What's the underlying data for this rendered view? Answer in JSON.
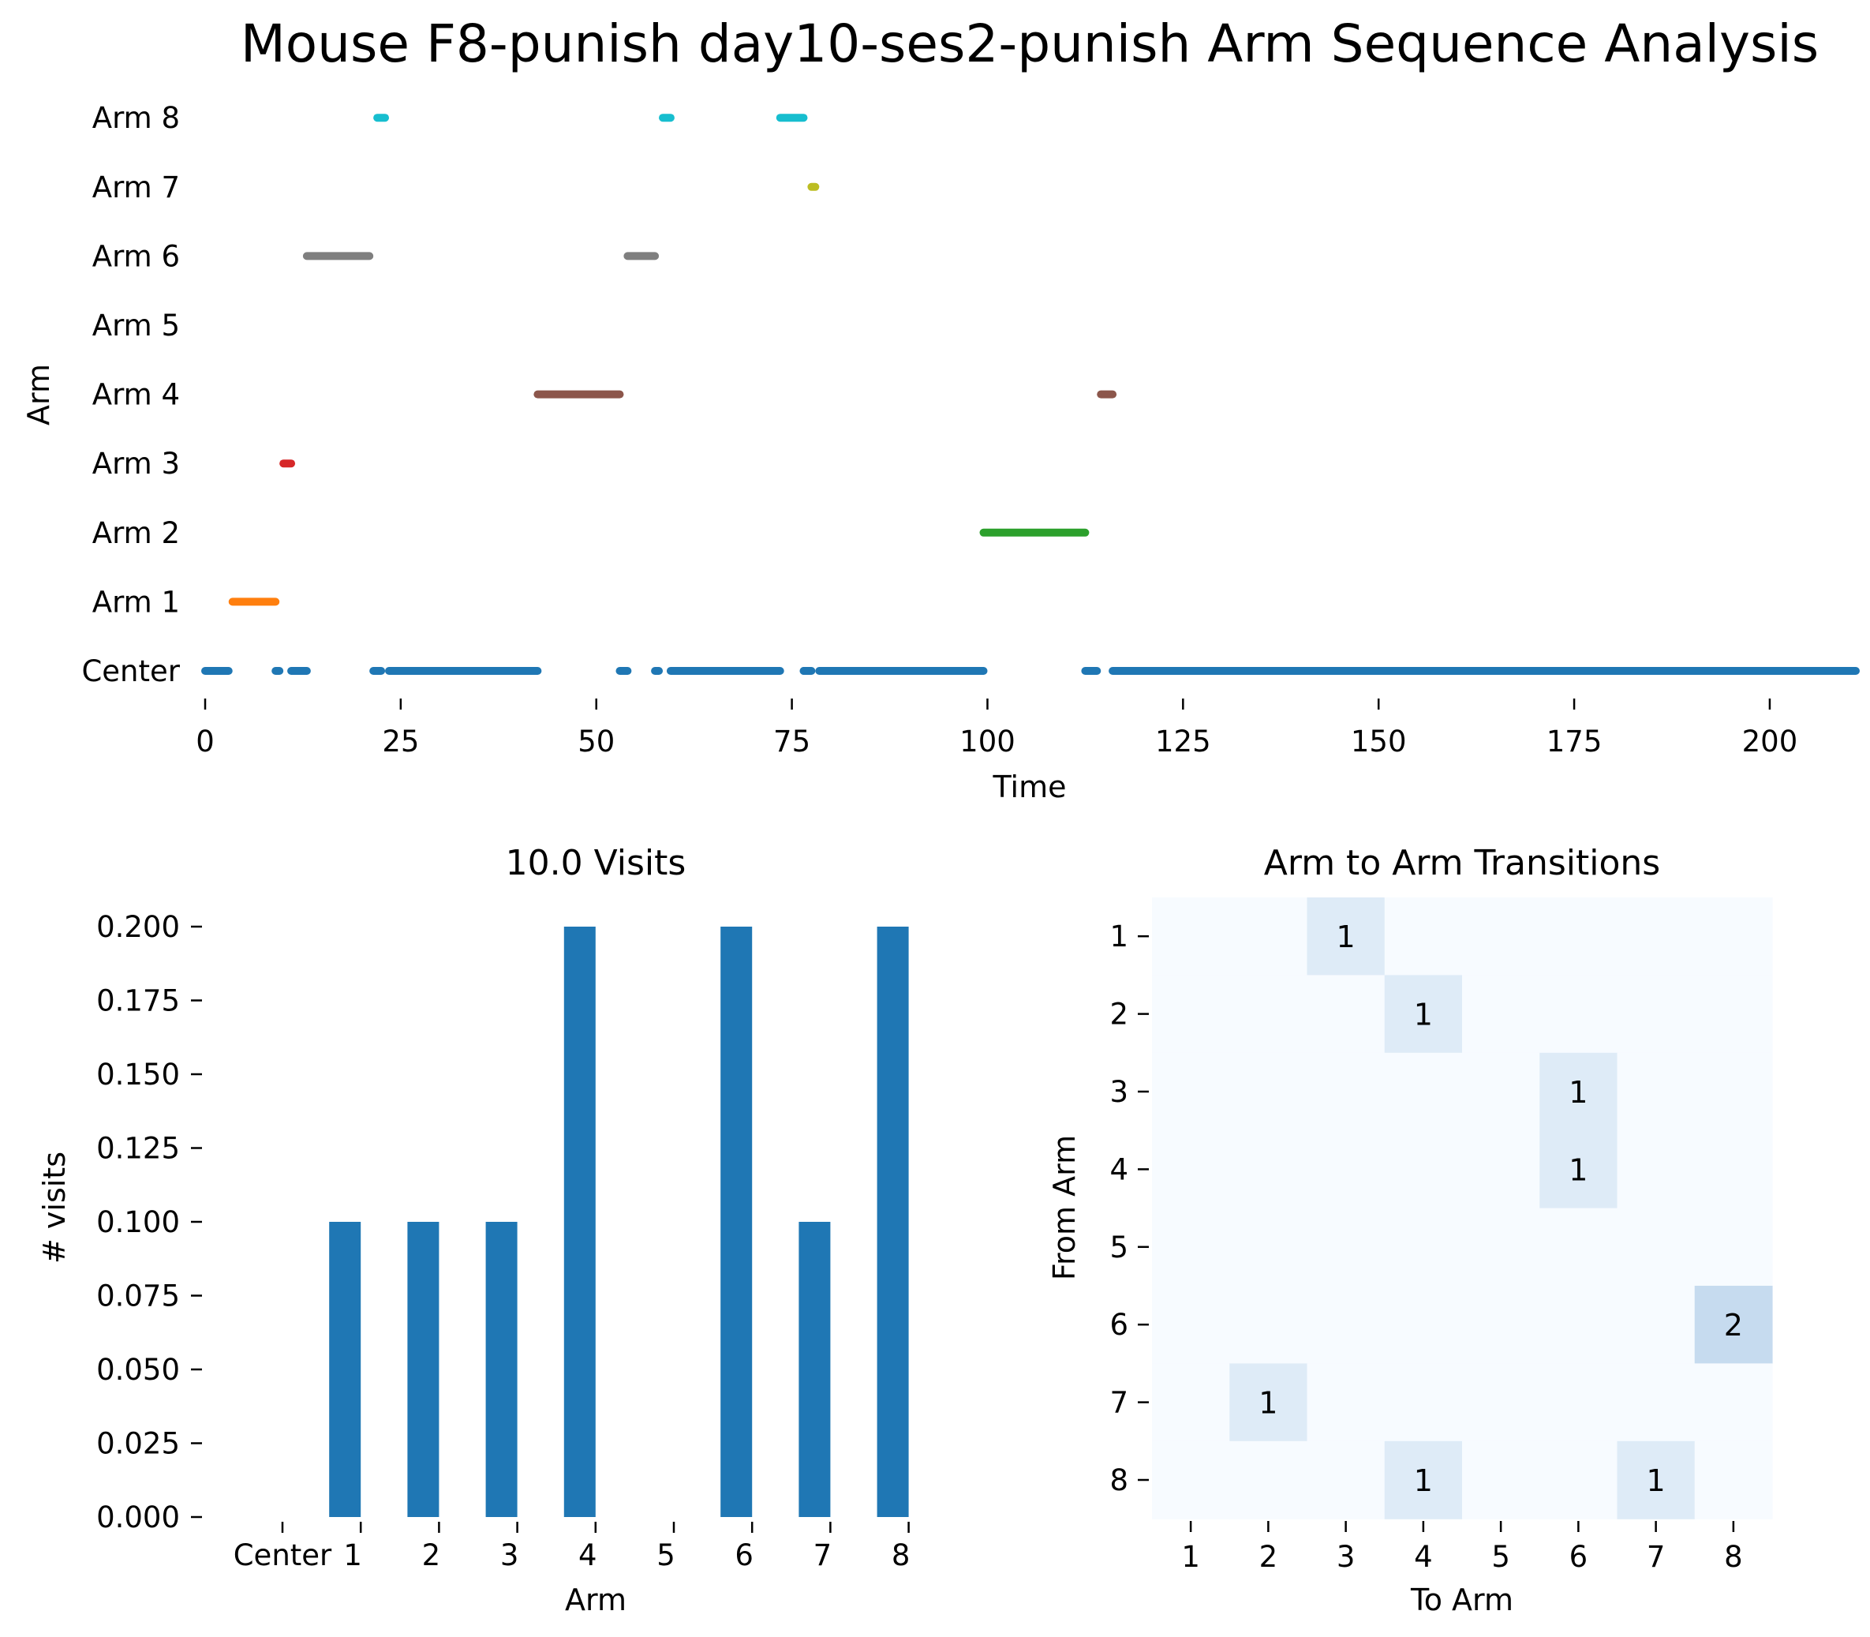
{
  "figure": {
    "title": "Mouse F8-punish day10-ses2-punish Arm Sequence Analysis"
  },
  "chart_data": [
    {
      "type": "timeline",
      "title": "",
      "xlabel": "Time",
      "ylabel": "Arm",
      "xlim": [
        0,
        211
      ],
      "xticks": [
        "0",
        "25",
        "50",
        "75",
        "100",
        "125",
        "150",
        "175",
        "200"
      ],
      "categories": [
        "Center",
        "Arm 1",
        "Arm 2",
        "Arm 3",
        "Arm 4",
        "Arm 5",
        "Arm 6",
        "Arm 7",
        "Arm 8"
      ],
      "colors": {
        "Center": "#1f77b4",
        "Arm 1": "#ff7f0e",
        "Arm 2": "#2ca02c",
        "Arm 3": "#d62728",
        "Arm 4": "#8c564b",
        "Arm 5": "#e377c2",
        "Arm 6": "#7f7f7f",
        "Arm 7": "#bcbd22",
        "Arm 8": "#17becf"
      },
      "series": [
        {
          "name": "Center",
          "segments": [
            [
              0,
              3
            ],
            [
              9,
              9.5
            ],
            [
              11,
              13
            ],
            [
              21.5,
              22.5
            ],
            [
              23.5,
              42.5
            ],
            [
              53,
              54
            ],
            [
              57.5,
              58
            ],
            [
              59.5,
              73.5
            ],
            [
              76.5,
              77.5
            ],
            [
              78.5,
              99.5
            ],
            [
              112.5,
              114
            ],
            [
              116,
              211
            ]
          ]
        },
        {
          "name": "Arm 1",
          "segments": [
            [
              3.5,
              9
            ]
          ]
        },
        {
          "name": "Arm 2",
          "segments": [
            [
              99.5,
              112.5
            ]
          ]
        },
        {
          "name": "Arm 3",
          "segments": [
            [
              10,
              11
            ]
          ]
        },
        {
          "name": "Arm 4",
          "segments": [
            [
              42.5,
              53
            ],
            [
              114.5,
              116
            ]
          ]
        },
        {
          "name": "Arm 5",
          "segments": []
        },
        {
          "name": "Arm 6",
          "segments": [
            [
              13,
              21
            ],
            [
              54,
              57.5
            ]
          ]
        },
        {
          "name": "Arm 7",
          "segments": [
            [
              77.5,
              78
            ]
          ]
        },
        {
          "name": "Arm 8",
          "segments": [
            [
              22,
              23
            ],
            [
              58.5,
              59.5
            ],
            [
              73.5,
              76.5
            ]
          ]
        }
      ]
    },
    {
      "type": "bar",
      "title": "10.0 Visits",
      "xlabel": "Arm",
      "ylabel": "# visits",
      "categories": [
        "Center",
        "1",
        "2",
        "3",
        "4",
        "5",
        "6",
        "7",
        "8"
      ],
      "values": [
        0,
        0.1,
        0.1,
        0.1,
        0.2,
        0,
        0.2,
        0.1,
        0.2
      ],
      "ylim": [
        0,
        0.2
      ],
      "yticks": [
        "0.000",
        "0.025",
        "0.050",
        "0.075",
        "0.100",
        "0.125",
        "0.150",
        "0.175",
        "0.200"
      ],
      "color": "#1f77b4"
    },
    {
      "type": "heatmap",
      "title": "Arm to Arm Transitions",
      "xlabel": "To Arm",
      "ylabel": "From Arm",
      "rows": [
        "1",
        "2",
        "3",
        "4",
        "5",
        "6",
        "7",
        "8"
      ],
      "cols": [
        "1",
        "2",
        "3",
        "4",
        "5",
        "6",
        "7",
        "8"
      ],
      "values": [
        [
          0,
          0,
          1,
          0,
          0,
          0,
          0,
          0
        ],
        [
          0,
          0,
          0,
          1,
          0,
          0,
          0,
          0
        ],
        [
          0,
          0,
          0,
          0,
          0,
          1,
          0,
          0
        ],
        [
          0,
          0,
          0,
          0,
          0,
          1,
          0,
          0
        ],
        [
          0,
          0,
          0,
          0,
          0,
          0,
          0,
          0
        ],
        [
          0,
          0,
          0,
          0,
          0,
          0,
          0,
          2
        ],
        [
          0,
          1,
          0,
          0,
          0,
          0,
          0,
          0
        ],
        [
          0,
          0,
          0,
          1,
          0,
          0,
          1,
          0
        ]
      ],
      "colormap": {
        "zero": "#f7fbff",
        "one": "#deebf7",
        "two": "#c6dbef"
      }
    }
  ]
}
